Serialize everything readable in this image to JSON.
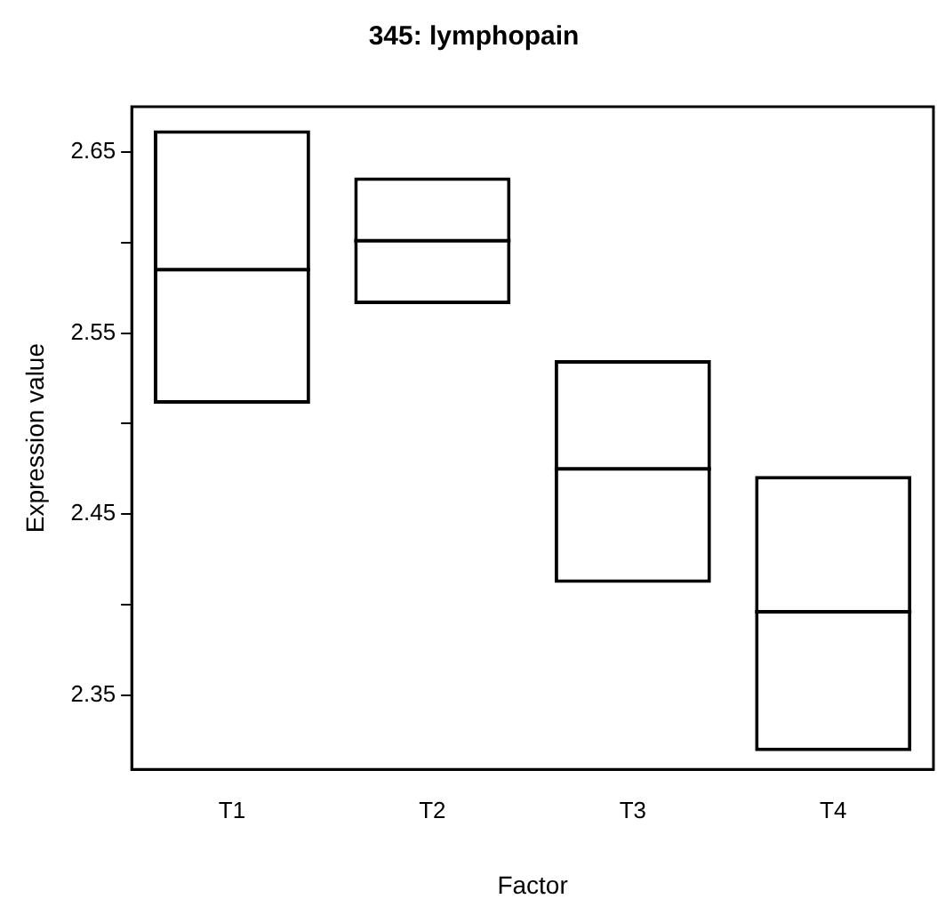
{
  "chart_data": {
    "type": "box",
    "title": "345: lymphopain",
    "xlabel": "Factor",
    "ylabel": "Expression value",
    "categories": [
      "T1",
      "T2",
      "T3",
      "T4"
    ],
    "boxes": [
      {
        "low": 2.511,
        "q1": 2.511,
        "median": 2.585,
        "q3": 2.662,
        "high": 2.662
      },
      {
        "low": 2.566,
        "q1": 2.566,
        "median": 2.601,
        "q3": 2.636,
        "high": 2.636
      },
      {
        "low": 2.412,
        "q1": 2.412,
        "median": 2.475,
        "q3": 2.535,
        "high": 2.535
      },
      {
        "low": 2.319,
        "q1": 2.319,
        "median": 2.396,
        "q3": 2.471,
        "high": 2.471
      }
    ],
    "color": "#000000",
    "ylim": [
      2.309,
      2.675
    ],
    "yticks": [
      2.35,
      {
        "value": 2.4,
        "label": null
      },
      2.45,
      {
        "value": 2.5,
        "label": null
      },
      2.55,
      {
        "value": 2.6,
        "label": null
      },
      2.65
    ],
    "grid": false,
    "legend": false
  }
}
